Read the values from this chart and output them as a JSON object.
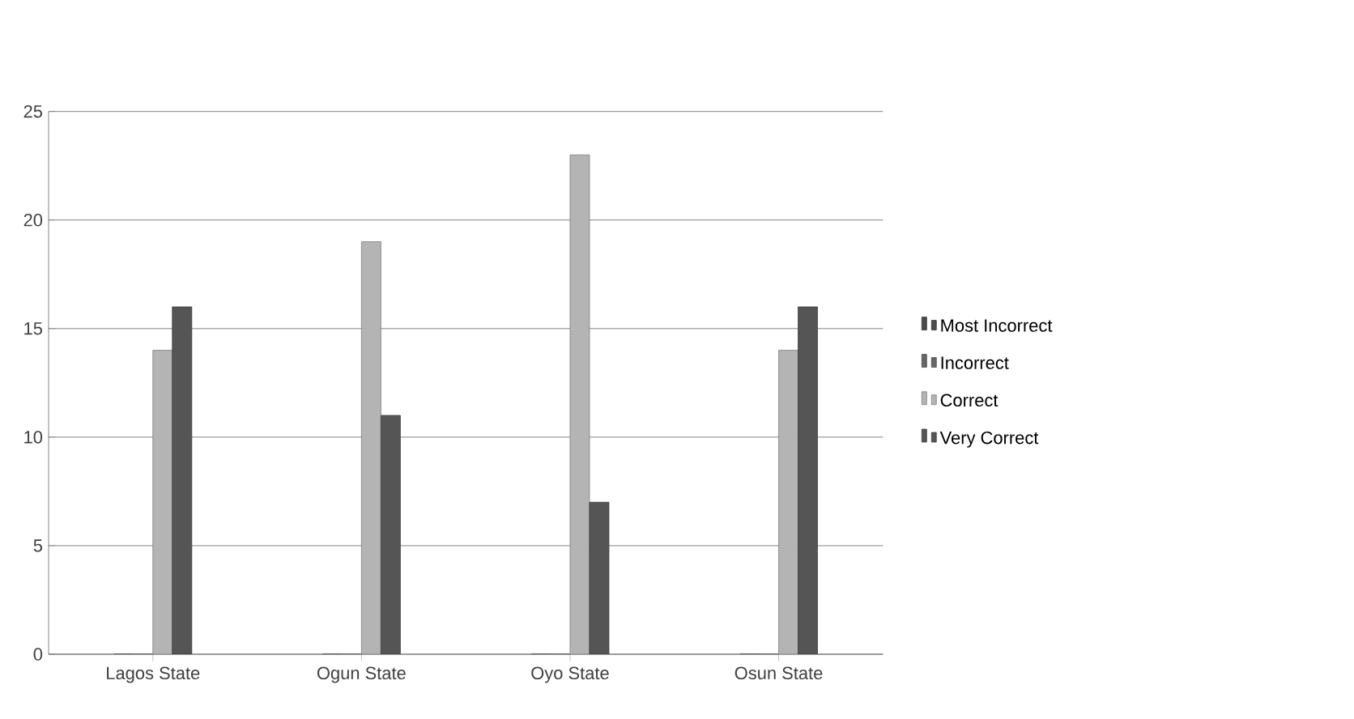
{
  "chart_data": {
    "type": "bar",
    "categories": [
      "Lagos State",
      "Ogun  State",
      "Oyo State",
      "Osun State"
    ],
    "series": [
      {
        "name": "Most Incorrect",
        "color": "#4a4a4a",
        "values": [
          0,
          0,
          0,
          0
        ]
      },
      {
        "name": "Incorrect",
        "color": "#666666",
        "values": [
          0,
          0,
          0,
          0
        ]
      },
      {
        "name": "Correct",
        "color": "#b4b4b4",
        "values": [
          14,
          19,
          23,
          14
        ]
      },
      {
        "name": "Very Correct",
        "color": "#555555",
        "values": [
          16,
          11,
          7,
          16
        ]
      }
    ],
    "ylim": [
      0,
      25
    ],
    "yticks": [
      0,
      5,
      10,
      15,
      20,
      25
    ],
    "grid": "y",
    "legend": "right"
  }
}
